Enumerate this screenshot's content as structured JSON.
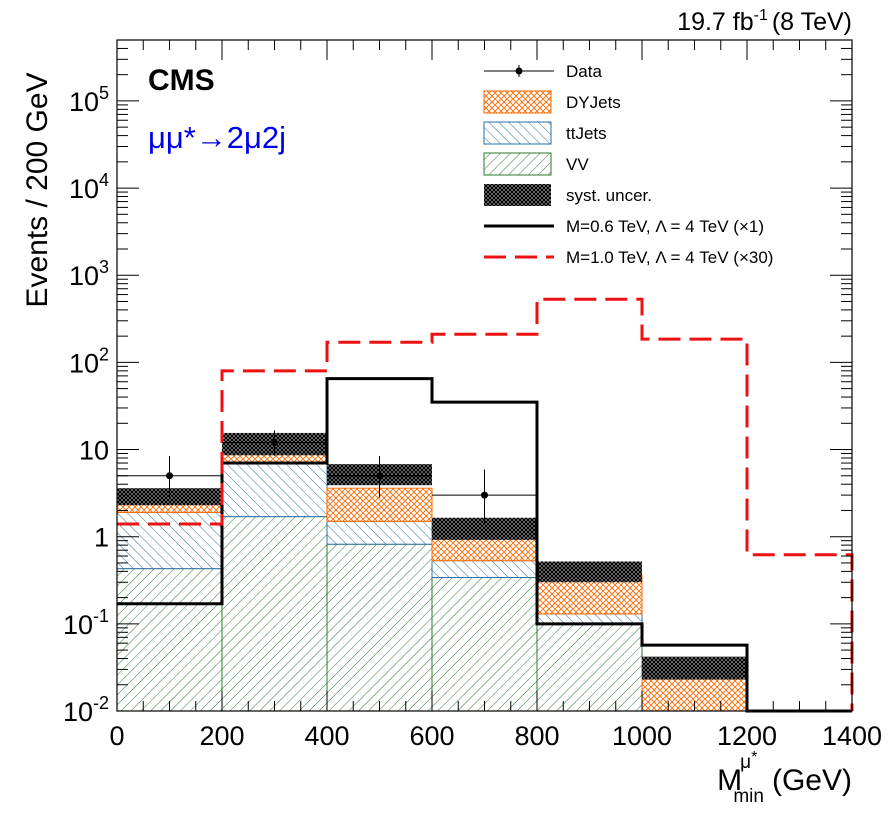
{
  "chart_data": {
    "type": "histogram",
    "title": "",
    "lumi_label": "19.7 fb",
    "lumi_sup": "-1",
    "lumi_energy": "(8 TeV)",
    "experiment_label": "CMS",
    "process_label": "μμ*→2μ2j",
    "process_color": "#0000ee",
    "xlabel_main": "M",
    "xlabel_sup": "μ",
    "xlabel_sup_star": "*",
    "xlabel_sub": "min",
    "xlabel_unit": "(GeV)",
    "ylabel": "Events / 200 GeV",
    "xlim": [
      0,
      1400
    ],
    "ylim_log": [
      0.01,
      500000
    ],
    "y_scale": "log",
    "bin_edges": [
      0,
      200,
      400,
      600,
      800,
      1000,
      1200,
      1400
    ],
    "x_ticks": [
      {
        "value": 0,
        "label": "0"
      },
      {
        "value": 200,
        "label": "200"
      },
      {
        "value": 400,
        "label": "400"
      },
      {
        "value": 600,
        "label": "600"
      },
      {
        "value": 800,
        "label": "800"
      },
      {
        "value": 1000,
        "label": "1000"
      },
      {
        "value": 1200,
        "label": "1200"
      },
      {
        "value": 1400,
        "label": "1400"
      }
    ],
    "y_ticks": [
      {
        "value": 0.01,
        "base": "10",
        "exp": "-2"
      },
      {
        "value": 0.1,
        "base": "10",
        "exp": "-1"
      },
      {
        "value": 1,
        "base": "1",
        "exp": ""
      },
      {
        "value": 10,
        "base": "10",
        "exp": ""
      },
      {
        "value": 100,
        "base": "10",
        "exp": "2"
      },
      {
        "value": 1000,
        "base": "10",
        "exp": "3"
      },
      {
        "value": 10000,
        "base": "10",
        "exp": "4"
      },
      {
        "value": 100000,
        "base": "10",
        "exp": "5"
      }
    ],
    "stack": [
      {
        "name": "VV",
        "key": "vv",
        "values": [
          0.43,
          1.7,
          0.82,
          0.34,
          0.1,
          0.0,
          0.0
        ],
        "color": "#2d7a2d",
        "fill": "hatch-vv"
      },
      {
        "name": "ttJets",
        "key": "tt",
        "values": [
          1.47,
          5.3,
          0.68,
          0.19,
          0.03,
          0.0,
          0.0
        ],
        "color": "#2a6fa8",
        "fill": "hatch-tt"
      },
      {
        "name": "DYJets",
        "key": "dy",
        "values": [
          0.6,
          3.0,
          2.1,
          0.47,
          0.23,
          0.025,
          0.0
        ],
        "color": "#ff6a00",
        "fill": "hatch-dy"
      }
    ],
    "syst_band": [
      {
        "low": 2.3,
        "high": 3.6
      },
      {
        "low": 8.6,
        "high": 15.5
      },
      {
        "low": 3.9,
        "high": 6.8
      },
      {
        "low": 0.92,
        "high": 1.65
      },
      {
        "low": 0.3,
        "high": 0.52
      },
      {
        "low": 0.023,
        "high": 0.042
      },
      {
        "low": null,
        "high": null
      }
    ],
    "data_points": [
      {
        "x": 100,
        "y": 5,
        "err_low": 2.2,
        "err_high": 3.4
      },
      {
        "x": 300,
        "y": 12,
        "err_low": 3.5,
        "err_high": 4.6
      },
      {
        "x": 500,
        "y": 5,
        "err_low": 2.2,
        "err_high": 3.4
      },
      {
        "x": 700,
        "y": 3,
        "err_low": 1.6,
        "err_high": 2.9
      }
    ],
    "signals": [
      {
        "name": "M=0.6 TeV, Λ = 4 TeV (×1)",
        "values": [
          0.17,
          7.0,
          65,
          35,
          0.1,
          0.057,
          0.01
        ],
        "color": "#000000",
        "style": "solid"
      },
      {
        "name": "M=1.0 TeV, Λ = 4 TeV (×30)",
        "values": [
          1.4,
          80,
          170,
          210,
          530,
          185,
          0.62
        ],
        "color": "#ee1111",
        "style": "dashed"
      }
    ],
    "legend": [
      {
        "label": "Data",
        "kind": "marker"
      },
      {
        "label": "DYJets",
        "kind": "hatch-dy"
      },
      {
        "label": "ttJets",
        "kind": "hatch-tt"
      },
      {
        "label": "VV",
        "kind": "hatch-vv"
      },
      {
        "label": "syst. uncer.",
        "kind": "hatch-syst"
      },
      {
        "label": "M=0.6 TeV, Λ = 4 TeV (×1)",
        "kind": "line-solid"
      },
      {
        "label": "M=1.0 TeV, Λ = 4 TeV (×30)",
        "kind": "line-dashed"
      }
    ],
    "legend_position": "top-right"
  }
}
